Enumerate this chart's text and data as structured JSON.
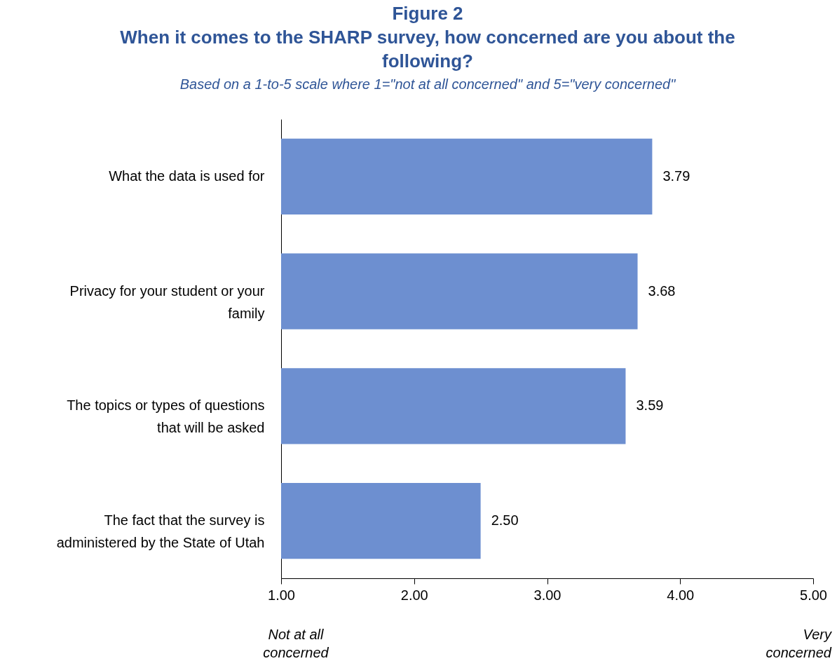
{
  "chart_data": {
    "type": "bar",
    "orientation": "horizontal",
    "title": "Figure 2",
    "subtitle": "When it comes to the SHARP survey, how concerned are you about the following?",
    "categories": [
      "What the data is used for",
      "Privacy for your student or your family",
      "The topics or types of questions that will be asked",
      "The fact that the survey is administered by the State of Utah"
    ],
    "values": [
      3.79,
      3.68,
      3.59,
      2.5
    ],
    "value_labels": [
      "3.79",
      "3.68",
      "3.59",
      "2.50"
    ],
    "color": "#6d8fd0",
    "xlim": [
      1,
      5
    ],
    "xticks": [
      {
        "value": 1,
        "label": "1.00"
      },
      {
        "value": 2,
        "label": "2.00"
      },
      {
        "value": 3,
        "label": "3.00"
      },
      {
        "value": 4,
        "label": "4.00"
      },
      {
        "value": 5,
        "label": "5.00"
      }
    ],
    "grid": false,
    "annotations": [
      "Based on a 1-to-5 scale where 1=\"not at all concerned\" and 5=\"very concerned\"",
      "Not at all concerned",
      "Very concerned"
    ]
  }
}
